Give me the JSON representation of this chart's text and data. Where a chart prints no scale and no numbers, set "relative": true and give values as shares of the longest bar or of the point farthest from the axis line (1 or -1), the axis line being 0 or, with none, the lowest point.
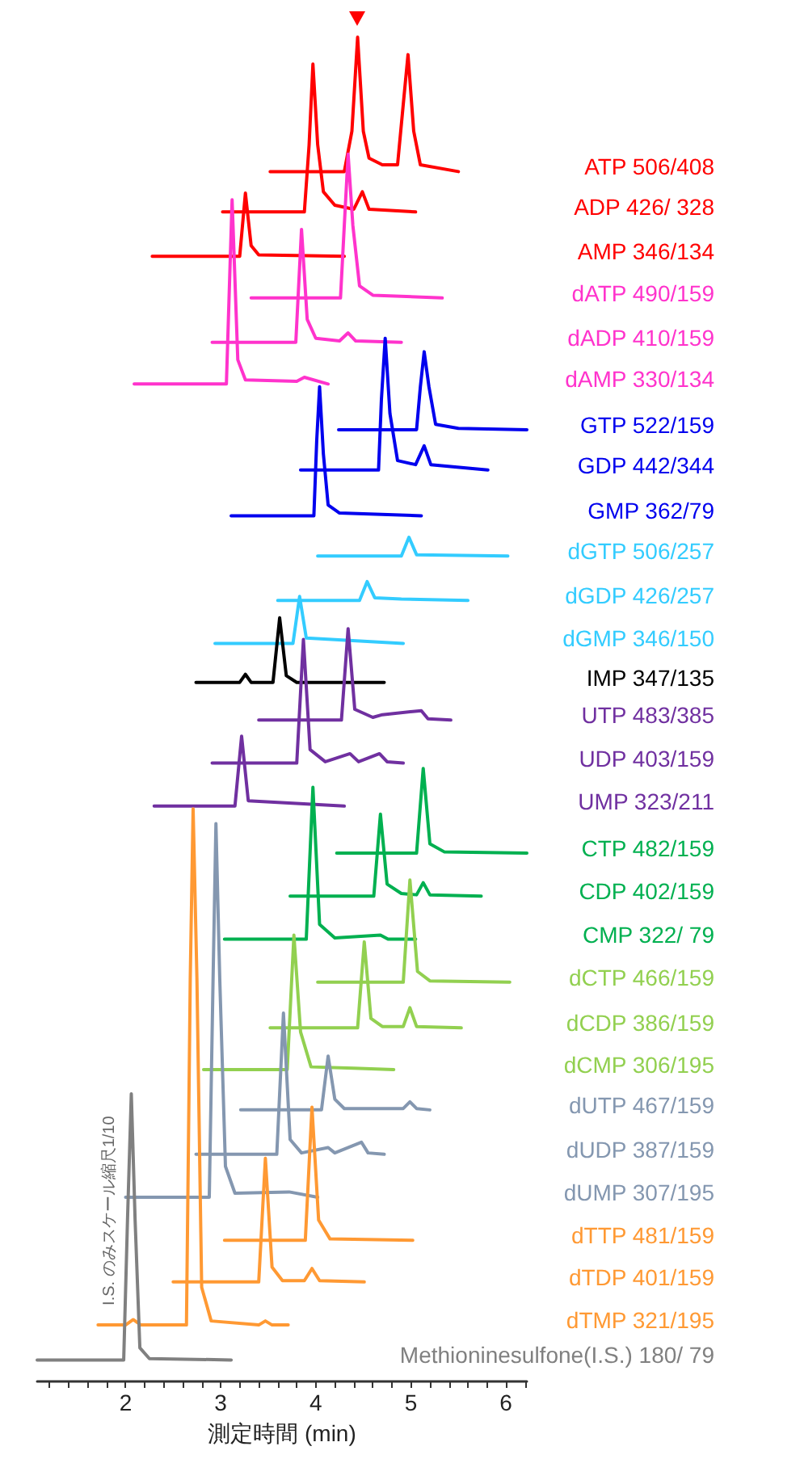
{
  "chart_data": {
    "type": "line",
    "relative": true,
    "xlabel": "測定時間 (min)",
    "annotations": [
      "I.S. のみスケール縮尺1/10"
    ],
    "legend": false,
    "xlim": [
      1.07,
      6.22
    ],
    "xticks": [
      {
        "value": 1.2,
        "label": null
      },
      {
        "value": 1.4,
        "label": null
      },
      {
        "value": 1.6,
        "label": null
      },
      {
        "value": 1.8,
        "label": null
      },
      2,
      {
        "value": 2.2,
        "label": null
      },
      {
        "value": 2.4,
        "label": null
      },
      {
        "value": 2.6,
        "label": null
      },
      {
        "value": 2.8,
        "label": null
      },
      3,
      {
        "value": 3.2,
        "label": null
      },
      {
        "value": 3.4,
        "label": null
      },
      {
        "value": 3.6,
        "label": null
      },
      {
        "value": 3.8,
        "label": null
      },
      4,
      {
        "value": 4.2,
        "label": null
      },
      {
        "value": 4.4,
        "label": null
      },
      {
        "value": 4.6,
        "label": null
      },
      {
        "value": 4.8,
        "label": null
      },
      5,
      {
        "value": 5.2,
        "label": null
      },
      {
        "value": 5.4,
        "label": null
      },
      {
        "value": 5.6,
        "label": null
      },
      {
        "value": 5.8,
        "label": null
      },
      6,
      {
        "value": 6.2,
        "label": null
      }
    ],
    "series": [
      {
        "name": "ATP 506/408",
        "color": "#ff0000",
        "x": [
          3.52,
          4.3,
          4.38,
          4.44,
          4.5,
          4.56,
          4.7,
          4.86,
          4.92,
          4.97,
          5.03,
          5.1,
          5.5
        ],
        "values": [
          0.9,
          0.9,
          0.93,
          1.0,
          0.93,
          0.91,
          0.905,
          0.905,
          0.95,
          0.987,
          0.93,
          0.905,
          0.9
        ]
      },
      {
        "name": "ADP 426/ 328",
        "color": "#ff0000",
        "x": [
          3.02,
          3.88,
          3.93,
          3.97,
          4.02,
          4.08,
          4.2,
          4.4,
          4.49,
          4.56,
          5.05
        ],
        "values": [
          0.87,
          0.87,
          0.92,
          0.98,
          0.92,
          0.885,
          0.875,
          0.872,
          0.885,
          0.872,
          0.87
        ]
      },
      {
        "name": "AMP 346/134",
        "color": "#ff0000",
        "x": [
          2.28,
          3.2,
          3.26,
          3.32,
          3.4,
          4.3
        ],
        "values": [
          0.837,
          0.837,
          0.884,
          0.845,
          0.838,
          0.837
        ]
      },
      {
        "name": "dATP 490/159",
        "color": "#ff33cc",
        "x": [
          3.32,
          4.26,
          4.3,
          4.34,
          4.39,
          4.46,
          4.6,
          5.33
        ],
        "values": [
          0.806,
          0.806,
          0.86,
          0.913,
          0.86,
          0.815,
          0.808,
          0.806
        ]
      },
      {
        "name": "dADP 410/159",
        "color": "#ff33cc",
        "x": [
          2.91,
          3.79,
          3.85,
          3.91,
          4.0,
          4.25,
          4.34,
          4.42,
          4.9
        ],
        "values": [
          0.773,
          0.773,
          0.857,
          0.79,
          0.776,
          0.774,
          0.78,
          0.774,
          0.773
        ]
      },
      {
        "name": "dAMP 330/134",
        "color": "#ff33cc",
        "x": [
          2.09,
          3.06,
          3.12,
          3.18,
          3.26,
          3.8,
          3.88,
          4.13
        ],
        "values": [
          0.742,
          0.742,
          0.879,
          0.76,
          0.745,
          0.744,
          0.747,
          0.742
        ]
      },
      {
        "name": "GTP 522/159",
        "color": "#0000ee",
        "x": [
          4.24,
          5.06,
          5.1,
          5.14,
          5.19,
          5.26,
          5.5,
          6.22
        ],
        "values": [
          0.708,
          0.708,
          0.74,
          0.766,
          0.74,
          0.712,
          0.709,
          0.708
        ]
      },
      {
        "name": "GDP 442/344",
        "color": "#0000ee",
        "x": [
          3.84,
          4.66,
          4.69,
          4.73,
          4.78,
          4.86,
          5.05,
          5.14,
          5.21,
          5.81
        ],
        "values": [
          0.678,
          0.678,
          0.73,
          0.776,
          0.72,
          0.685,
          0.682,
          0.696,
          0.682,
          0.678
        ]
      },
      {
        "name": "GMP 362/79",
        "color": "#0000ee",
        "x": [
          3.11,
          3.98,
          4.01,
          4.04,
          4.08,
          4.13,
          4.25,
          5.11
        ],
        "values": [
          0.644,
          0.644,
          0.7,
          0.74,
          0.69,
          0.652,
          0.646,
          0.644
        ]
      },
      {
        "name": "dGTP 506/257",
        "color": "#33ccff",
        "x": [
          4.02,
          4.9,
          4.98,
          5.06,
          6.02
        ],
        "values": [
          0.614,
          0.614,
          0.628,
          0.615,
          0.614
        ]
      },
      {
        "name": "dGDP 426/257",
        "color": "#33ccff",
        "x": [
          3.6,
          4.46,
          4.54,
          4.62,
          4.9,
          5.6
        ],
        "values": [
          0.581,
          0.581,
          0.595,
          0.583,
          0.582,
          0.581
        ]
      },
      {
        "name": "dGMP 346/150",
        "color": "#33ccff",
        "x": [
          2.94,
          3.76,
          3.83,
          3.9,
          4.92
        ],
        "values": [
          0.549,
          0.549,
          0.584,
          0.553,
          0.549
        ]
      },
      {
        "name": "IMP 347/135",
        "color": "#000000",
        "x": [
          2.74,
          3.2,
          3.26,
          3.32,
          3.55,
          3.62,
          3.69,
          3.8,
          4.72
        ],
        "values": [
          0.52,
          0.52,
          0.526,
          0.52,
          0.52,
          0.568,
          0.525,
          0.52,
          0.52
        ]
      },
      {
        "name": "UTP 483/385",
        "color": "#7030a0",
        "x": [
          3.4,
          4.27,
          4.34,
          4.41,
          4.6,
          4.7,
          5.11,
          5.18,
          5.42
        ],
        "values": [
          0.492,
          0.492,
          0.56,
          0.5,
          0.494,
          0.496,
          0.499,
          0.493,
          0.492
        ]
      },
      {
        "name": "UDP 403/159",
        "color": "#7030a0",
        "x": [
          2.91,
          3.8,
          3.87,
          3.94,
          4.1,
          4.36,
          4.45,
          4.67,
          4.75,
          4.92
        ],
        "values": [
          0.46,
          0.46,
          0.552,
          0.47,
          0.461,
          0.467,
          0.461,
          0.467,
          0.461,
          0.46
        ]
      },
      {
        "name": "UMP 323/211",
        "color": "#7030a0",
        "x": [
          2.3,
          3.15,
          3.22,
          3.29,
          4.3
        ],
        "values": [
          0.428,
          0.428,
          0.48,
          0.432,
          0.428
        ]
      },
      {
        "name": "CTP 482/159",
        "color": "#00b050",
        "x": [
          4.22,
          5.06,
          5.13,
          5.2,
          5.35,
          6.22
        ],
        "values": [
          0.393,
          0.393,
          0.456,
          0.4,
          0.394,
          0.393
        ]
      },
      {
        "name": "CDP 402/159",
        "color": "#00b050",
        "x": [
          3.73,
          4.61,
          4.68,
          4.75,
          4.9,
          5.06,
          5.13,
          5.2,
          5.74
        ],
        "values": [
          0.361,
          0.361,
          0.422,
          0.37,
          0.363,
          0.362,
          0.371,
          0.362,
          0.361
        ]
      },
      {
        "name": "CMP 322/ 79",
        "color": "#00b050",
        "x": [
          3.04,
          3.9,
          3.97,
          4.04,
          4.2,
          4.68,
          4.76,
          5.05
        ],
        "values": [
          0.329,
          0.329,
          0.442,
          0.34,
          0.33,
          0.332,
          0.329,
          0.329
        ]
      },
      {
        "name": "dCTP 466/159",
        "color": "#92d050",
        "x": [
          4.02,
          4.92,
          4.99,
          5.07,
          5.2,
          6.04
        ],
        "values": [
          0.297,
          0.297,
          0.373,
          0.305,
          0.298,
          0.297
        ]
      },
      {
        "name": "dCDP 386/159",
        "color": "#92d050",
        "x": [
          3.52,
          4.44,
          4.51,
          4.58,
          4.7,
          4.92,
          4.99,
          5.06,
          5.53
        ],
        "values": [
          0.263,
          0.263,
          0.327,
          0.27,
          0.264,
          0.264,
          0.278,
          0.264,
          0.263
        ]
      },
      {
        "name": "dCMP 306/195",
        "color": "#92d050",
        "x": [
          2.82,
          3.7,
          3.77,
          3.84,
          3.95,
          4.4,
          4.82
        ],
        "values": [
          0.232,
          0.232,
          0.332,
          0.26,
          0.234,
          0.233,
          0.232
        ]
      },
      {
        "name": "dUTP 467/159",
        "color": "#8497b0",
        "x": [
          3.21,
          4.06,
          4.13,
          4.2,
          4.3,
          4.92,
          4.99,
          5.06,
          5.2
        ],
        "values": [
          0.202,
          0.202,
          0.242,
          0.21,
          0.203,
          0.203,
          0.208,
          0.203,
          0.202
        ]
      },
      {
        "name": "dUDP 387/159",
        "color": "#8497b0",
        "x": [
          2.74,
          3.59,
          3.66,
          3.73,
          3.85,
          4.13,
          4.2,
          4.48,
          4.55,
          4.72
        ],
        "values": [
          0.169,
          0.169,
          0.274,
          0.18,
          0.17,
          0.174,
          0.17,
          0.178,
          0.17,
          0.169
        ]
      },
      {
        "name": "dUMP 307/195",
        "color": "#8497b0",
        "x": [
          2.0,
          2.88,
          2.92,
          2.95,
          2.99,
          3.05,
          3.15,
          3.72,
          4.02
        ],
        "values": [
          0.137,
          0.137,
          0.3,
          0.415,
          0.3,
          0.16,
          0.14,
          0.141,
          0.137
        ]
      },
      {
        "name": "dTTP 481/159",
        "color": "#ff9933",
        "x": [
          3.04,
          3.89,
          3.96,
          4.03,
          4.15,
          5.02
        ],
        "values": [
          0.105,
          0.105,
          0.204,
          0.12,
          0.106,
          0.105
        ]
      },
      {
        "name": "dTDP 401/159",
        "color": "#ff9933",
        "x": [
          2.5,
          3.4,
          3.47,
          3.54,
          3.65,
          3.88,
          3.96,
          4.04,
          4.51
        ],
        "values": [
          0.074,
          0.074,
          0.166,
          0.085,
          0.075,
          0.075,
          0.084,
          0.075,
          0.074
        ]
      },
      {
        "name": "dTMP 321/195",
        "color": "#ff9933",
        "x": [
          1.71,
          2.0,
          2.08,
          2.16,
          2.64,
          2.68,
          2.71,
          2.75,
          2.8,
          2.9,
          3.4,
          3.47,
          3.54,
          3.71
        ],
        "values": [
          0.042,
          0.042,
          0.046,
          0.042,
          0.042,
          0.3,
          0.426,
          0.3,
          0.07,
          0.045,
          0.042,
          0.045,
          0.042,
          0.042
        ]
      },
      {
        "name": "Methioninesulfone(I.S.) 180/ 79",
        "color": "#808080",
        "x": [
          1.07,
          1.98,
          2.02,
          2.06,
          2.1,
          2.15,
          2.25,
          3.11
        ],
        "values": [
          0.016,
          0.016,
          0.12,
          0.214,
          0.12,
          0.025,
          0.017,
          0.016
        ]
      }
    ]
  }
}
